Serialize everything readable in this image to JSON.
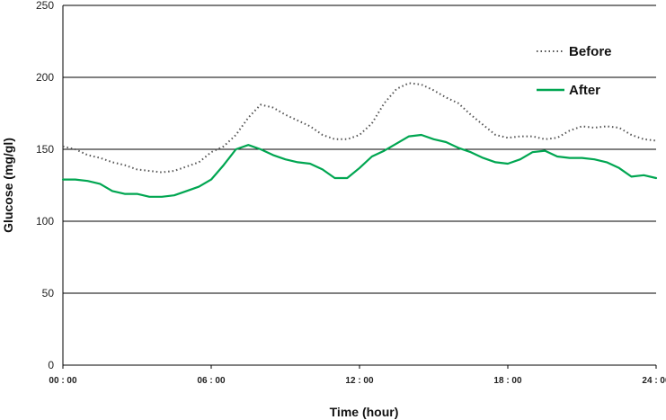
{
  "chart_data": {
    "type": "line",
    "title": "",
    "xlabel": "Time (hour)",
    "ylabel": "Glucose (mg/gl)",
    "xlim": [
      0,
      24
    ],
    "ylim": [
      0,
      250
    ],
    "yticks": [
      0,
      50,
      100,
      150,
      200,
      250
    ],
    "xticks": [
      {
        "value": 0,
        "label": "00 : 00"
      },
      {
        "value": 6,
        "label": "06 : 00"
      },
      {
        "value": 12,
        "label": "12 : 00"
      },
      {
        "value": 18,
        "label": "18 : 00"
      },
      {
        "value": 24,
        "label": "24 : 00"
      }
    ],
    "grid": "horizontal",
    "legend_position": "top-right",
    "series": [
      {
        "name": "Before",
        "color": "#555555",
        "style": "dotted",
        "x": [
          0,
          0.5,
          1,
          1.5,
          2,
          2.5,
          3,
          3.5,
          4,
          4.5,
          5,
          5.5,
          6,
          6.5,
          7,
          7.5,
          8,
          8.5,
          9,
          9.5,
          10,
          10.5,
          11,
          11.5,
          12,
          12.5,
          13,
          13.5,
          14,
          14.5,
          15,
          15.5,
          16,
          16.5,
          17,
          17.5,
          18,
          18.5,
          19,
          19.5,
          20,
          20.5,
          21,
          21.5,
          22,
          22.5,
          23,
          23.5,
          24
        ],
        "y": [
          152,
          150,
          146,
          144,
          141,
          139,
          136,
          135,
          134,
          135,
          138,
          141,
          148,
          152,
          160,
          172,
          181,
          179,
          174,
          170,
          166,
          160,
          157,
          157,
          160,
          168,
          182,
          192,
          196,
          195,
          191,
          186,
          182,
          174,
          167,
          160,
          158,
          159,
          159,
          157,
          158,
          163,
          166,
          165,
          166,
          165,
          160,
          157,
          156
        ]
      },
      {
        "name": "After",
        "color": "#00A651",
        "style": "solid",
        "x": [
          0,
          0.5,
          1,
          1.5,
          2,
          2.5,
          3,
          3.5,
          4,
          4.5,
          5,
          5.5,
          6,
          6.5,
          7,
          7.5,
          8,
          8.5,
          9,
          9.5,
          10,
          10.5,
          11,
          11.5,
          12,
          12.5,
          13,
          13.5,
          14,
          14.5,
          15,
          15.5,
          16,
          16.5,
          17,
          17.5,
          18,
          18.5,
          19,
          19.5,
          20,
          20.5,
          21,
          21.5,
          22,
          22.5,
          23,
          23.5,
          24
        ],
        "y": [
          129,
          129,
          128,
          126,
          121,
          119,
          119,
          117,
          117,
          118,
          121,
          124,
          129,
          139,
          150,
          153,
          150,
          146,
          143,
          141,
          140,
          136,
          130,
          130,
          137,
          145,
          149,
          154,
          159,
          160,
          157,
          155,
          151,
          148,
          144,
          141,
          140,
          143,
          148,
          149,
          145,
          144,
          144,
          143,
          141,
          137,
          131,
          132,
          130
        ]
      }
    ]
  }
}
